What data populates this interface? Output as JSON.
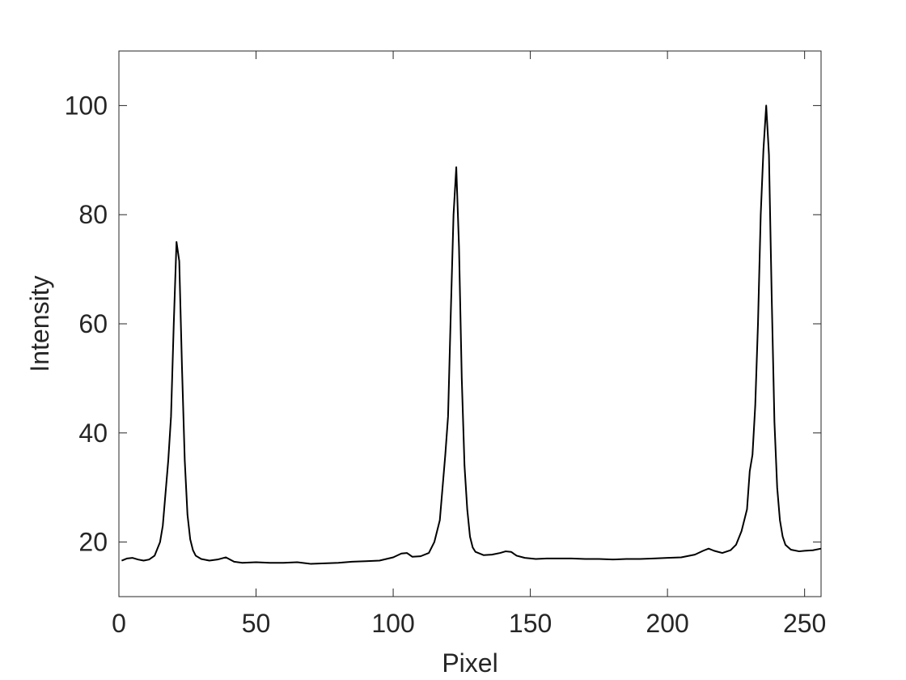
{
  "chart_data": {
    "type": "line",
    "xlabel": "Pixel",
    "ylabel": "Intensity",
    "color": "#000000",
    "x": [
      1,
      3,
      5,
      7,
      9,
      11,
      13,
      15,
      16,
      17,
      18,
      19,
      20,
      21,
      22,
      23,
      24,
      25,
      26,
      27,
      28,
      30,
      33,
      36,
      39,
      42,
      45,
      50,
      55,
      60,
      65,
      70,
      75,
      80,
      85,
      90,
      95,
      100,
      103,
      105,
      107,
      110,
      113,
      115,
      117,
      118,
      119,
      120,
      121,
      122,
      123,
      124,
      125,
      126,
      127,
      128,
      129,
      130,
      133,
      136,
      139,
      141,
      143,
      145,
      148,
      152,
      156,
      160,
      165,
      170,
      175,
      180,
      185,
      190,
      195,
      200,
      205,
      210,
      213,
      215,
      217,
      220,
      223,
      225,
      227,
      229,
      230,
      231,
      232,
      233,
      234,
      235,
      236,
      237,
      238,
      239,
      240,
      241,
      242,
      243,
      245,
      248,
      250,
      253,
      256
    ],
    "values": [
      16.6,
      17.0,
      17.1,
      16.8,
      16.6,
      16.8,
      17.5,
      20,
      23,
      29,
      35,
      43,
      60,
      75,
      71.5,
      52,
      35,
      25,
      20.5,
      18.5,
      17.5,
      16.9,
      16.6,
      16.8,
      17.2,
      16.4,
      16.2,
      16.3,
      16.2,
      16.2,
      16.3,
      16.0,
      16.1,
      16.2,
      16.4,
      16.5,
      16.6,
      17.2,
      17.9,
      18.0,
      17.3,
      17.4,
      18.0,
      20,
      24,
      30,
      36,
      43,
      62,
      80,
      88.7,
      74,
      50,
      34,
      26,
      21,
      19,
      18.2,
      17.6,
      17.7,
      18.0,
      18.3,
      18.2,
      17.5,
      17.1,
      16.9,
      17.0,
      17.0,
      17.0,
      16.9,
      16.9,
      16.8,
      16.9,
      16.9,
      17.0,
      17.1,
      17.2,
      17.7,
      18.4,
      18.8,
      18.4,
      18.0,
      18.5,
      19.5,
      22,
      26,
      33,
      36,
      45,
      60,
      80,
      92,
      100,
      91,
      65,
      42,
      30,
      24,
      21,
      19.5,
      18.6,
      18.3,
      18.4,
      18.5,
      18.8
    ],
    "xlim": [
      0,
      256
    ],
    "ylim": [
      10,
      110
    ],
    "xticks": [
      0,
      50,
      100,
      150,
      200,
      250
    ],
    "yticks": [
      20,
      40,
      60,
      80,
      100
    ]
  }
}
